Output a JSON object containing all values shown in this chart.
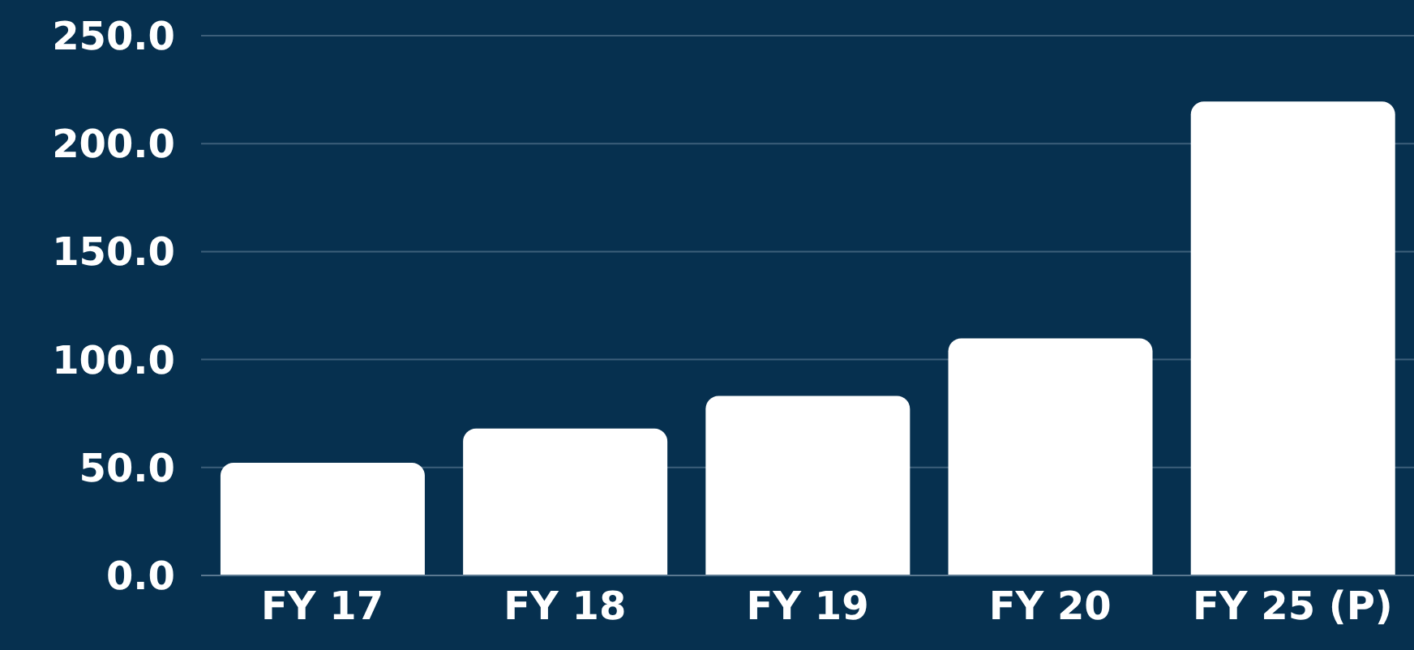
{
  "chart_data": {
    "type": "bar",
    "categories": [
      "FY 17",
      "FY 18",
      "FY 19",
      "FY 20",
      "FY 25 (P)"
    ],
    "values": [
      52.2,
      68.0,
      83.1,
      109.8,
      219.5
    ],
    "color": "#ffffff",
    "ylim": [
      0,
      250
    ],
    "yticks": [
      {
        "value": 0,
        "label": "0.0"
      },
      {
        "value": 50,
        "label": "50.0"
      },
      {
        "value": 100,
        "label": "100.0"
      },
      {
        "value": 150,
        "label": "150.0"
      },
      {
        "value": 200,
        "label": "200.0"
      },
      {
        "value": 250,
        "label": "250.0"
      }
    ],
    "grid": "y"
  }
}
